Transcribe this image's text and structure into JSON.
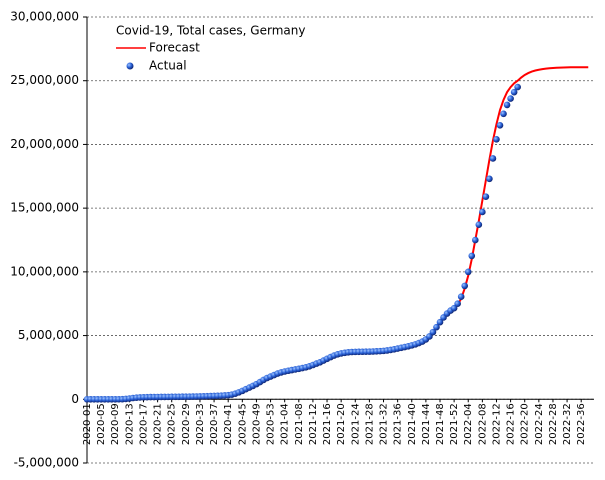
{
  "chart_data": {
    "type": "line",
    "legend_title": "Covid-19, Total cases, Germany",
    "categories": [
      "2020-01",
      null,
      null,
      null,
      "2020-05",
      null,
      null,
      null,
      "2020-09",
      null,
      null,
      null,
      "2020-13",
      null,
      null,
      null,
      "2020-17",
      null,
      null,
      null,
      "2020-21",
      null,
      null,
      null,
      "2020-25",
      null,
      null,
      null,
      "2020-29",
      null,
      null,
      null,
      "2020-33",
      null,
      null,
      null,
      "2020-37",
      null,
      null,
      null,
      "2020-41",
      null,
      null,
      null,
      "2020-45",
      null,
      null,
      null,
      "2020-49",
      null,
      null,
      null,
      "2020-53",
      null,
      null,
      null,
      "2021-04",
      null,
      null,
      null,
      "2021-08",
      null,
      null,
      null,
      "2021-12",
      null,
      null,
      null,
      "2021-16",
      null,
      null,
      null,
      "2021-20",
      null,
      null,
      null,
      "2021-24",
      null,
      null,
      null,
      "2021-28",
      null,
      null,
      null,
      "2021-32",
      null,
      null,
      null,
      "2021-36",
      null,
      null,
      null,
      "2021-40",
      null,
      null,
      null,
      "2021-44",
      null,
      null,
      null,
      "2021-48",
      null,
      null,
      null,
      "2021-52",
      null,
      null,
      null,
      "2022-04",
      null,
      null,
      null,
      "2022-08",
      null,
      null,
      null,
      "2022-12",
      null,
      null,
      null,
      "2022-16",
      null,
      null,
      null,
      "2022-20",
      null,
      null,
      null,
      "2022-24",
      null,
      null,
      null,
      "2022-28",
      null,
      null,
      null,
      "2022-32",
      null,
      null,
      null,
      "2022-36",
      null,
      null
    ],
    "series": [
      {
        "name": "Forecast",
        "color": "#ff0000",
        "style": "line",
        "values": [
          0,
          0,
          0,
          0,
          0,
          0,
          0,
          0,
          1000,
          2000,
          8000,
          30000,
          62000,
          100000,
          128000,
          146000,
          160000,
          167000,
          172000,
          177000,
          180000,
          183000,
          186000,
          189000,
          193000,
          196000,
          198000,
          200000,
          203000,
          207000,
          212000,
          219000,
          227000,
          236000,
          244000,
          252000,
          261000,
          272000,
          285000,
          300000,
          325000,
          366000,
          437000,
          542000,
          661000,
          790000,
          920000,
          1050000,
          1190000,
          1350000,
          1520000,
          1670000,
          1780000,
          1900000,
          2020000,
          2110000,
          2180000,
          2240000,
          2290000,
          2340000,
          2390000,
          2450000,
          2510000,
          2590000,
          2690000,
          2800000,
          2900000,
          3040000,
          3180000,
          3310000,
          3430000,
          3530000,
          3600000,
          3650000,
          3690000,
          3710000,
          3720000,
          3725000,
          3730000,
          3735000,
          3740000,
          3750000,
          3765000,
          3780000,
          3800000,
          3830000,
          3870000,
          3920000,
          3980000,
          4040000,
          4100000,
          4160000,
          4230000,
          4310000,
          4410000,
          4530000,
          4700000,
          4930000,
          5270000,
          5660000,
          6050000,
          6420000,
          6730000,
          6960000,
          7150000,
          7400000,
          7900000,
          8700000,
          9700000,
          11000000,
          12500000,
          14000000,
          15600000,
          17200000,
          18800000,
          20300000,
          21600000,
          22700000,
          23500000,
          24100000,
          24500000,
          24800000,
          25000000,
          25250000,
          25450000,
          25600000,
          25720000,
          25800000,
          25860000,
          25910000,
          25950000,
          25980000,
          26000000,
          26020000,
          26030000,
          26040000,
          26050000,
          26060000,
          26060000,
          26060000,
          26060000,
          26060000,
          26060000
        ]
      },
      {
        "name": "Actual",
        "color": "#1f5fcf",
        "style": "points",
        "values": [
          0,
          0,
          0,
          0,
          0,
          0,
          0,
          0,
          1000,
          2000,
          8000,
          30000,
          62000,
          100000,
          128000,
          146000,
          160000,
          167000,
          172000,
          177000,
          180000,
          183000,
          186000,
          189000,
          193000,
          196000,
          198000,
          200000,
          203000,
          207000,
          212000,
          219000,
          227000,
          236000,
          244000,
          252000,
          261000,
          272000,
          285000,
          300000,
          325000,
          366000,
          437000,
          542000,
          661000,
          790000,
          920000,
          1050000,
          1190000,
          1350000,
          1520000,
          1670000,
          1780000,
          1900000,
          2020000,
          2110000,
          2180000,
          2240000,
          2290000,
          2340000,
          2390000,
          2450000,
          2510000,
          2590000,
          2690000,
          2800000,
          2900000,
          3040000,
          3180000,
          3310000,
          3430000,
          3530000,
          3600000,
          3650000,
          3690000,
          3710000,
          3720000,
          3725000,
          3730000,
          3735000,
          3740000,
          3750000,
          3765000,
          3780000,
          3800000,
          3830000,
          3870000,
          3920000,
          3980000,
          4040000,
          4100000,
          4160000,
          4230000,
          4310000,
          4410000,
          4530000,
          4700000,
          4930000,
          5270000,
          5660000,
          6050000,
          6420000,
          6730000,
          6960000,
          7150000,
          7500000,
          8050000,
          8900000,
          10000000,
          11250000,
          12500000,
          13700000,
          14700000,
          15900000,
          17300000,
          18900000,
          20400000,
          21500000,
          22400000,
          23100000,
          23600000,
          24100000,
          24500000,
          null,
          null,
          null,
          null,
          null,
          null,
          null,
          null,
          null,
          null,
          null,
          null,
          null,
          null,
          null,
          null,
          null,
          null,
          null,
          null
        ]
      }
    ],
    "ylim": [
      -5000000,
      30000000
    ],
    "yticks": [
      {
        "value": -5000000,
        "label": "-5,000,000"
      },
      0,
      {
        "value": 5000000,
        "label": "5,000,000"
      },
      {
        "value": 10000000,
        "label": "10,000,000"
      },
      {
        "value": 15000000,
        "label": "15,000,000"
      },
      {
        "value": 20000000,
        "label": "20,000,000"
      },
      {
        "value": 25000000,
        "label": "25,000,000"
      },
      {
        "value": 30000000,
        "label": "30,000,000"
      }
    ],
    "grid": true
  }
}
